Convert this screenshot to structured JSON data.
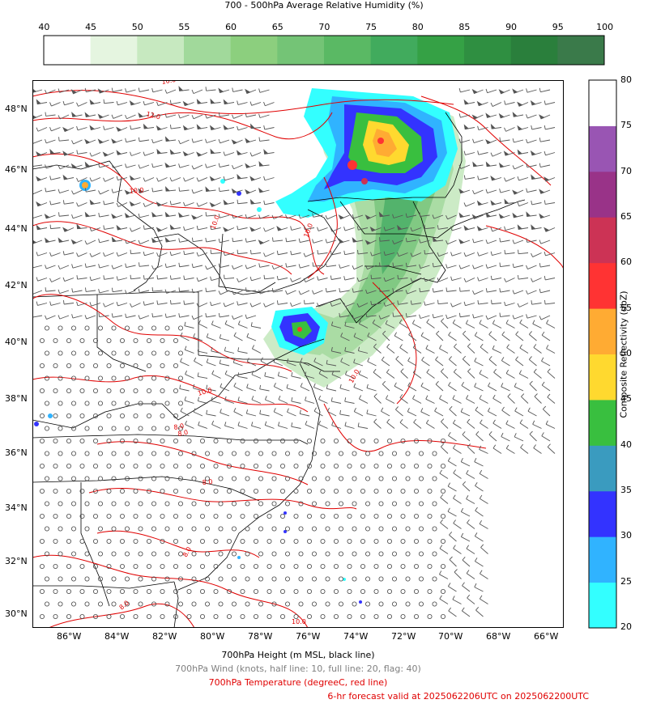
{
  "rh_colorbar": {
    "title": "700 - 500hPa Average Relative Humidity (%)",
    "ticks": [
      "40",
      "45",
      "50",
      "55",
      "60",
      "65",
      "70",
      "75",
      "80",
      "85",
      "90",
      "95",
      "100"
    ],
    "colors": [
      "#ffffff",
      "#e5f5e0",
      "#c7e9c0",
      "#a1d99b",
      "#8ccf7e",
      "#74c476",
      "#5ab964",
      "#41ab5d",
      "#35a145",
      "#2f8f41",
      "#2a7f3c",
      "#3a7a4a"
    ]
  },
  "refl_colorbar": {
    "label": "Composite Reflectivity (dbZ)",
    "ticks": [
      "20",
      "25",
      "30",
      "35",
      "40",
      "45",
      "50",
      "55",
      "60",
      "65",
      "70",
      "75",
      "80"
    ],
    "colors": [
      "#33ffff",
      "#30b3ff",
      "#3333ff",
      "#3a9bbf",
      "#39bf3f",
      "#ffd92f",
      "#ffab33",
      "#ff3333",
      "#cc3355",
      "#993388",
      "#9955b3",
      "#ffffff"
    ]
  },
  "map": {
    "lon_labels": [
      "86°W",
      "84°W",
      "82°W",
      "80°W",
      "78°W",
      "76°W",
      "74°W",
      "72°W",
      "70°W",
      "68°W",
      "66°W"
    ],
    "lat_labels": [
      "48°N",
      "46°N",
      "44°N",
      "42°N",
      "40°N",
      "38°N",
      "36°N",
      "34°N",
      "32°N",
      "30°N"
    ],
    "contour_labels": [
      "10.0",
      "12.0",
      "10.0",
      "10.0",
      "8.0",
      "8.0",
      "10.0",
      "10.0",
      "8.0",
      "8.0",
      "10.0",
      "8.0",
      "10.0"
    ],
    "colors": {
      "temperature": "#e00000",
      "wind": "#555555",
      "coast": "#000000",
      "frame": "#000000"
    }
  },
  "captions": {
    "height": "700hPa Height (m MSL, black line)",
    "wind": "700hPa Wind (knots, half line: 10, full line: 20, flag: 40)",
    "temperature": "700hPa Temperature (degreeC, red line)",
    "valid": "6-hr forecast valid at 2025062206UTC on 2025062200UTC"
  }
}
